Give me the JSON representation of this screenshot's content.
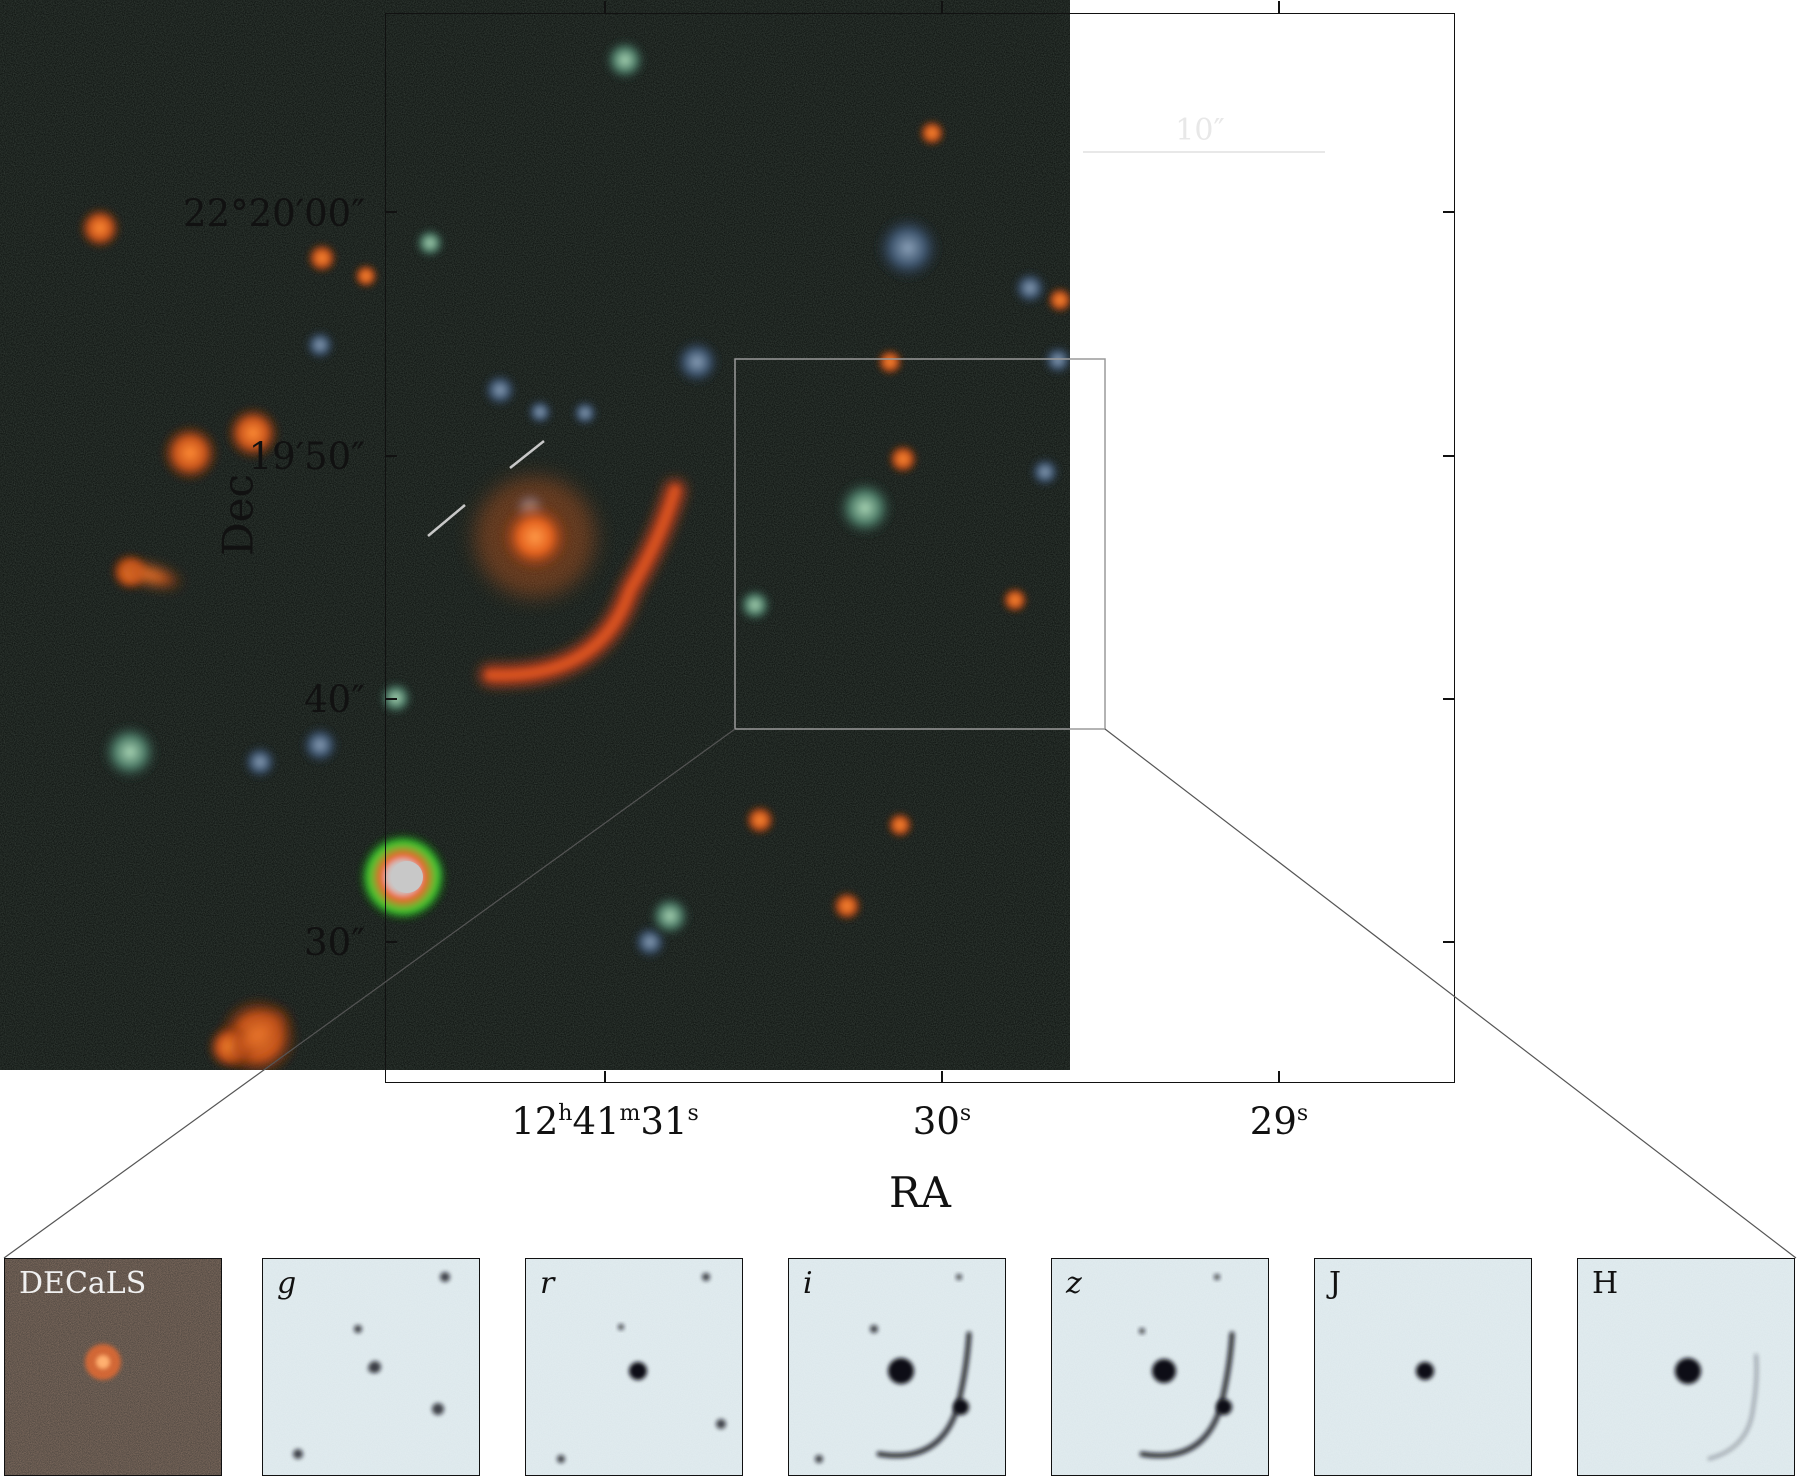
{
  "figure": {
    "y_axis": {
      "label": "Dec",
      "ticks": [
        "22°20′00″",
        "19′50″",
        "40″",
        "30″"
      ]
    },
    "x_axis": {
      "label": "RA",
      "ticks": [
        {
          "main": "12",
          "sup1": "h",
          "mid": "41",
          "sup2": "m",
          "end": "31",
          "sup3": "s"
        },
        {
          "main": "30",
          "sup": "s"
        },
        {
          "main": "29",
          "sup": "s"
        }
      ]
    },
    "scale_bar": {
      "label": "10″"
    },
    "cutout_panels": [
      {
        "label": "DECaLS",
        "style": "color"
      },
      {
        "label": "g",
        "style": "grayscale"
      },
      {
        "label": "r",
        "style": "grayscale"
      },
      {
        "label": "i",
        "style": "grayscale"
      },
      {
        "label": "z",
        "style": "grayscale"
      },
      {
        "label": "J",
        "style": "grayscale"
      },
      {
        "label": "H",
        "style": "grayscale"
      }
    ]
  },
  "colors": {
    "sky_background": "#070b09",
    "lens_galaxy": "#e5621e",
    "arc": "#c8431c",
    "cutout_background": "#e4eef1",
    "cutout_ink": "#0c0c18"
  }
}
